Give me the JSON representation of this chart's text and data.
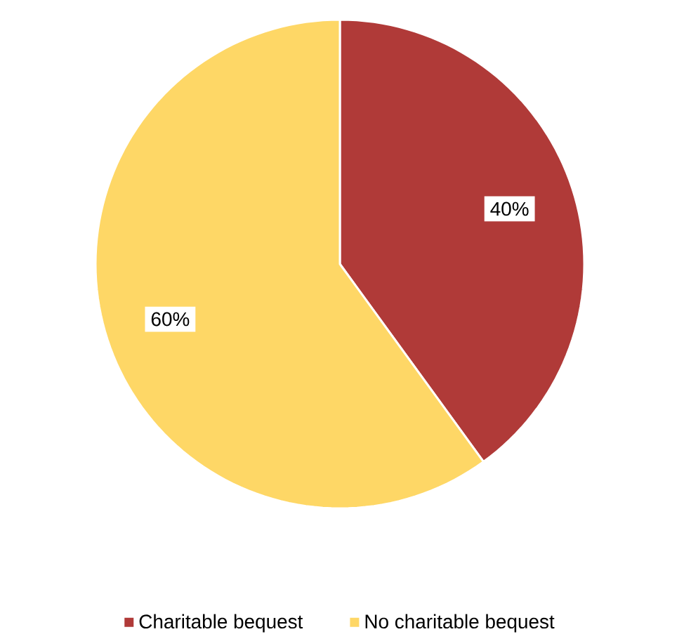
{
  "chart_data": {
    "type": "pie",
    "categories": [
      "Charitable bequest",
      "No charitable bequest"
    ],
    "values": [
      40,
      60
    ],
    "colors": [
      "#b03a38",
      "#fed766"
    ],
    "value_labels": [
      "40%",
      "60%"
    ],
    "legend": "bottom"
  }
}
